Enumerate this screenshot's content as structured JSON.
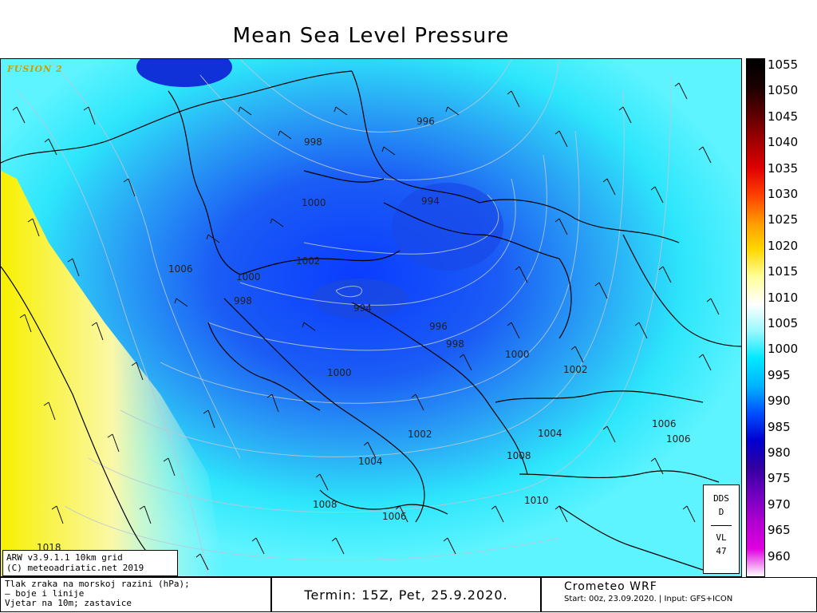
{
  "title": "Mean Sea Level Pressure",
  "fusion_label": "FUSION 2",
  "info_box": {
    "line1": "ARW v3.9.1.1 10km grid",
    "line2": "(C) meteoadriatic.net 2019"
  },
  "dds_box": {
    "top1": "DDS",
    "top2": "D",
    "bottom1": "VL",
    "bottom2": "47"
  },
  "scale": {
    "labels": [
      "1055",
      "1050",
      "1045",
      "1040",
      "1035",
      "1030",
      "1025",
      "1020",
      "1015",
      "1010",
      "1005",
      "1000",
      "995",
      "990",
      "985",
      "980",
      "975",
      "970",
      "965",
      "960"
    ],
    "colors_top_to_bottom": [
      "#000000",
      "#1a0000",
      "#5a0000",
      "#a00000",
      "#e00000",
      "#ff4000",
      "#ff9a00",
      "#ffd800",
      "#ffff9a",
      "#ffffff",
      "#9af8ff",
      "#00e8ff",
      "#00b4ff",
      "#0050ff",
      "#0000d0",
      "#3000a0",
      "#7000c0",
      "#b000d0",
      "#e000e0",
      "#ffffff"
    ]
  },
  "pressure_labels": [
    {
      "text": "996"
    },
    {
      "text": "998"
    },
    {
      "text": "994"
    },
    {
      "text": "1000"
    },
    {
      "text": "1006"
    },
    {
      "text": "1002"
    },
    {
      "text": "1000"
    },
    {
      "text": "998"
    },
    {
      "text": "994"
    },
    {
      "text": "996"
    },
    {
      "text": "998"
    },
    {
      "text": "1000"
    },
    {
      "text": "1002"
    },
    {
      "text": "1000"
    },
    {
      "text": "1002"
    },
    {
      "text": "1004"
    },
    {
      "text": "1004"
    },
    {
      "text": "1006"
    },
    {
      "text": "1006"
    },
    {
      "text": "1008"
    },
    {
      "text": "1008"
    },
    {
      "text": "1010"
    },
    {
      "text": "1006"
    },
    {
      "text": "1018"
    }
  ],
  "footer": {
    "legend_line1": "Tlak zraka na morskoj razini (hPa);",
    "legend_line2": "— boje i linije",
    "legend_line3": "Vjetar na 10m; zastavice",
    "term": "Termin: 15Z, Pet, 25.9.2020.",
    "crometeo_title": "Crometeo WRF",
    "crometeo_sub": "Start: 00z, 23.09.2020. | Input: GFS+ICON"
  }
}
